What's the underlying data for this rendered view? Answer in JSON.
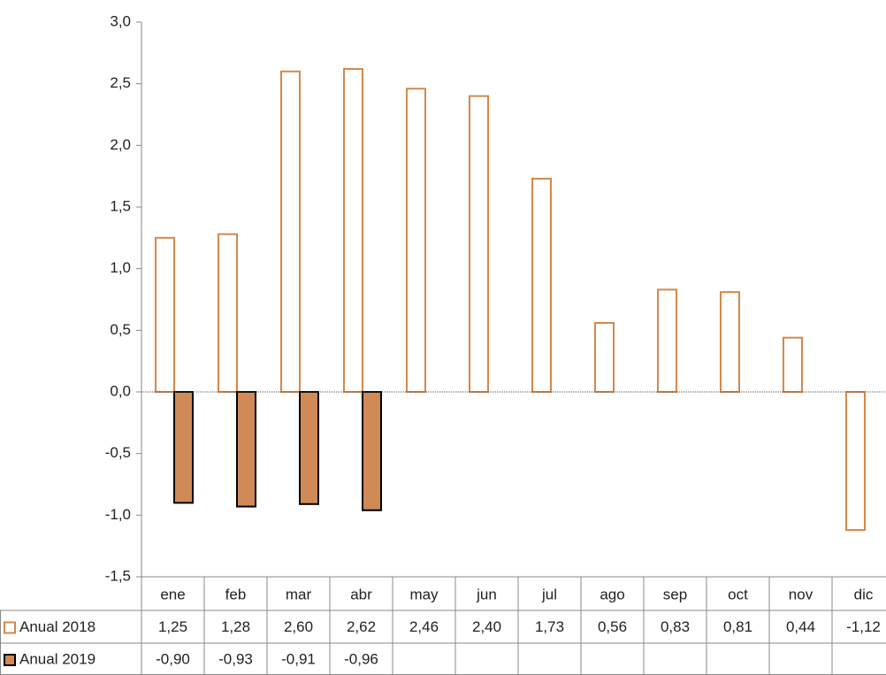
{
  "chart_data": {
    "type": "bar",
    "categories": [
      "ene",
      "feb",
      "mar",
      "abr",
      "may",
      "jun",
      "jul",
      "ago",
      "sep",
      "oct",
      "nov",
      "dic"
    ],
    "series": [
      {
        "name": "Anual 2018",
        "color": "#d4884a",
        "fill": "#ffffff",
        "values": [
          1.25,
          1.28,
          2.6,
          2.62,
          2.46,
          2.4,
          1.73,
          0.56,
          0.83,
          0.81,
          0.44,
          -1.12
        ],
        "value_labels": [
          "1,25",
          "1,28",
          "2,60",
          "2,62",
          "2,46",
          "2,40",
          "1,73",
          "0,56",
          "0,83",
          "0,81",
          "0,44",
          "-1,12"
        ]
      },
      {
        "name": "Anual 2019",
        "color": "#000000",
        "fill": "#d08a55",
        "values": [
          -0.9,
          -0.93,
          -0.91,
          -0.96,
          null,
          null,
          null,
          null,
          null,
          null,
          null,
          null
        ],
        "value_labels": [
          "-0,90",
          "-0,93",
          "-0,91",
          "-0,96",
          null,
          null,
          null,
          null,
          null,
          null,
          null,
          null
        ]
      }
    ],
    "ylim": [
      -1.5,
      3.0
    ],
    "yticks": [
      {
        "value": -1.5,
        "label": "-1,5"
      },
      {
        "value": -1.0,
        "label": "-1,0"
      },
      {
        "value": -0.5,
        "label": "-0,5"
      },
      {
        "value": 0,
        "label": "0,0"
      },
      {
        "value": 0.5,
        "label": "0,5"
      },
      {
        "value": 1.0,
        "label": "1,0"
      },
      {
        "value": 1.5,
        "label": "1,5"
      },
      {
        "value": 2.0,
        "label": "2,0"
      },
      {
        "value": 2.5,
        "label": "2,5"
      },
      {
        "value": 3.0,
        "label": "3,0"
      }
    ],
    "data_table": true
  }
}
